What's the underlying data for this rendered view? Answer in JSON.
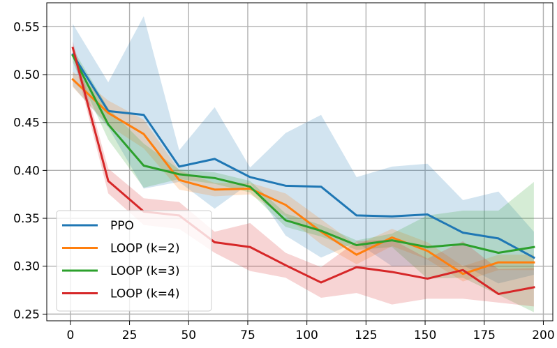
{
  "chart_data": {
    "type": "line",
    "title": "",
    "xlabel": "",
    "ylabel": "",
    "xlim": [
      -10,
      204
    ],
    "ylim": [
      0.243,
      0.575
    ],
    "x_ticks": [
      0,
      25,
      50,
      75,
      100,
      125,
      150,
      175,
      200
    ],
    "y_ticks": [
      0.25,
      0.3,
      0.35,
      0.4,
      0.45,
      0.5,
      0.55
    ],
    "y_tick_labels": [
      "0.25",
      "0.30",
      "0.35",
      "0.40",
      "0.45",
      "0.50",
      "0.55"
    ],
    "grid": true,
    "legend_position": "lower-left",
    "x": [
      1,
      16,
      31,
      46,
      61,
      76,
      91,
      106,
      121,
      136,
      151,
      166,
      181,
      196
    ],
    "series": [
      {
        "name": "PPO",
        "color": "#1f77b4",
        "values": [
          0.521,
          0.462,
          0.458,
          0.404,
          0.412,
          0.393,
          0.384,
          0.383,
          0.353,
          0.352,
          0.354,
          0.335,
          0.329,
          0.309
        ],
        "upper": [
          0.553,
          0.492,
          0.561,
          0.421,
          0.466,
          0.403,
          0.439,
          0.458,
          0.393,
          0.404,
          0.407,
          0.369,
          0.378,
          0.336
        ],
        "lower": [
          0.488,
          0.445,
          0.381,
          0.388,
          0.36,
          0.387,
          0.332,
          0.309,
          0.325,
          0.3,
          0.301,
          0.301,
          0.282,
          0.291
        ]
      },
      {
        "name": "LOOP (k=2)",
        "color": "#ff7f0e",
        "values": [
          0.495,
          0.46,
          0.438,
          0.39,
          0.38,
          0.381,
          0.364,
          0.336,
          0.312,
          0.33,
          0.316,
          0.292,
          0.304,
          0.304
        ],
        "upper": [
          0.503,
          0.473,
          0.453,
          0.4,
          0.387,
          0.387,
          0.376,
          0.349,
          0.322,
          0.339,
          0.325,
          0.3,
          0.312,
          0.312
        ],
        "lower": [
          0.487,
          0.447,
          0.423,
          0.38,
          0.373,
          0.375,
          0.352,
          0.323,
          0.302,
          0.321,
          0.307,
          0.284,
          0.296,
          0.296
        ]
      },
      {
        "name": "LOOP (k=3)",
        "color": "#2ca02c",
        "values": [
          0.52,
          0.448,
          0.405,
          0.396,
          0.392,
          0.383,
          0.348,
          0.337,
          0.322,
          0.327,
          0.32,
          0.323,
          0.314,
          0.32
        ],
        "upper": [
          0.527,
          0.465,
          0.428,
          0.401,
          0.398,
          0.389,
          0.355,
          0.343,
          0.327,
          0.334,
          0.353,
          0.358,
          0.358,
          0.388
        ],
        "lower": [
          0.513,
          0.432,
          0.382,
          0.391,
          0.386,
          0.377,
          0.341,
          0.331,
          0.317,
          0.32,
          0.287,
          0.288,
          0.27,
          0.252
        ]
      },
      {
        "name": "LOOP (k=4)",
        "color": "#d62728",
        "values": [
          0.528,
          0.389,
          0.357,
          0.353,
          0.325,
          0.32,
          0.301,
          0.283,
          0.299,
          0.294,
          0.287,
          0.296,
          0.271,
          0.278
        ],
        "upper": [
          0.535,
          0.402,
          0.371,
          0.367,
          0.336,
          0.345,
          0.314,
          0.299,
          0.326,
          0.328,
          0.308,
          0.326,
          0.297,
          0.298
        ],
        "lower": [
          0.521,
          0.376,
          0.343,
          0.339,
          0.314,
          0.295,
          0.288,
          0.267,
          0.272,
          0.26,
          0.266,
          0.266,
          0.262,
          0.258
        ]
      }
    ]
  },
  "colors": {
    "PPO": "#1f77b4",
    "LOOP (k=2)": "#ff7f0e",
    "LOOP (k=3)": "#2ca02c",
    "LOOP (k=4)": "#d62728"
  }
}
